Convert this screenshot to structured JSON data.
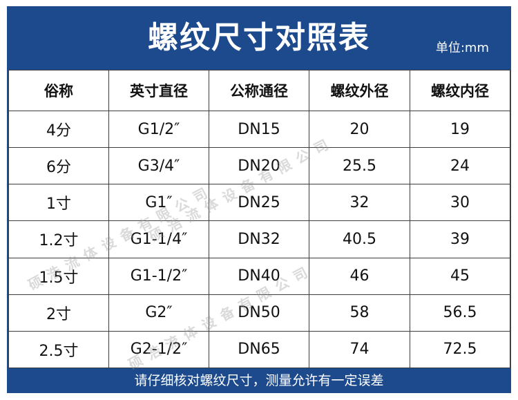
{
  "title": "螺纹尺寸对照表",
  "unit": "单位:mm",
  "columns": [
    "俗称",
    "英寸直径",
    "公称通径",
    "螺纹外径",
    "螺纹内径"
  ],
  "rows": [
    [
      "4分",
      "G1/2″",
      "DN15",
      "20",
      "19"
    ],
    [
      "6分",
      "G3/4″",
      "DN20",
      "25.5",
      "24"
    ],
    [
      "1寸",
      "G1″",
      "DN25",
      "32",
      "30"
    ],
    [
      "1.2寸",
      "G1-1/4″",
      "DN32",
      "40.5",
      "39"
    ],
    [
      "1.5寸",
      "G1-1/2″",
      "DN40",
      "46",
      "45"
    ],
    [
      "2寸",
      "G2″",
      "DN50",
      "58",
      "56.5"
    ],
    [
      "2.5寸",
      "G2-1/2″",
      "DN65",
      "74",
      "72.5"
    ]
  ],
  "footer": "请仔细核对螺纹尺寸，测量允许有一定误差",
  "watermark": "硕浩流体设备有限公司"
}
